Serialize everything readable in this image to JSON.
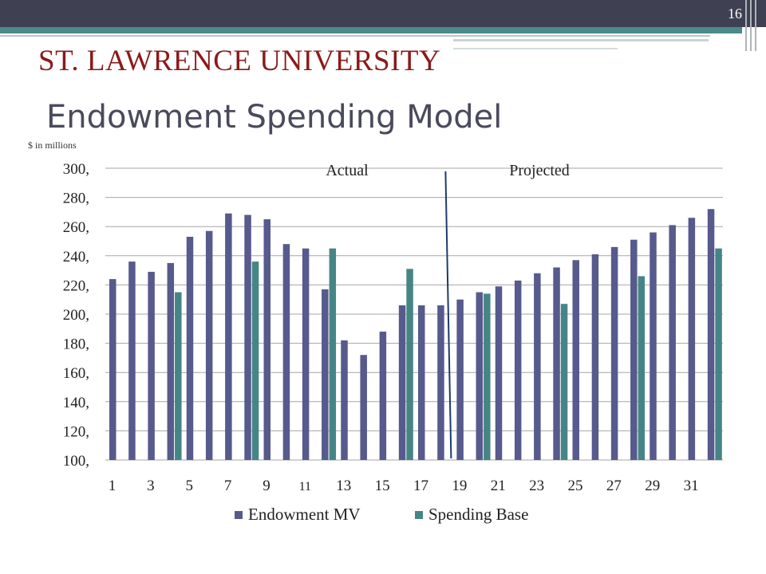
{
  "header": {
    "page_number": "16",
    "logo_text": "ST. LAWRENCE UNIVERSITY",
    "title": "Endowment Spending Model"
  },
  "colors": {
    "endowment": "#575a8c",
    "spending": "#468585",
    "divider": "#1f3a6e",
    "topbar": "#3f4152",
    "teal_bar": "#4a8a8a",
    "logo": "#8b1a1a",
    "title": "#4a4a5c"
  },
  "chart_data": {
    "type": "bar",
    "units_label": "$ in millions",
    "ylim": [
      100,
      300
    ],
    "y_ticks": [
      "100,",
      "120,",
      "140,",
      "160,",
      "180,",
      "200,",
      "220,",
      "240,",
      "260,",
      "280,",
      "300,"
    ],
    "y_tick_values": [
      100,
      120,
      140,
      160,
      180,
      200,
      220,
      240,
      260,
      280,
      300
    ],
    "x_tick_labels": [
      "1",
      "3",
      "5",
      "7",
      "9",
      "11",
      "13",
      "15",
      "17",
      "19",
      "21",
      "23",
      "25",
      "27",
      "29",
      "31"
    ],
    "categories": [
      1,
      2,
      3,
      4,
      5,
      6,
      7,
      8,
      9,
      10,
      11,
      12,
      13,
      14,
      15,
      16,
      17,
      18,
      19,
      20,
      21,
      22,
      23,
      24,
      25,
      26,
      27,
      28,
      29,
      30,
      31,
      32
    ],
    "grid": true,
    "legend_position": "bottom",
    "divider_after_category": 18,
    "annotations": [
      "Actual",
      "Projected"
    ],
    "series": [
      {
        "name": "Endowment MV",
        "values": [
          224,
          236,
          229,
          235,
          253,
          257,
          269,
          268,
          265,
          248,
          245,
          217,
          182,
          172,
          188,
          206,
          206,
          206,
          210,
          215,
          219,
          223,
          228,
          232,
          237,
          241,
          246,
          251,
          256,
          261,
          266,
          272
        ]
      },
      {
        "name": "Spending Base",
        "values": [
          null,
          null,
          null,
          215,
          null,
          null,
          null,
          236,
          null,
          null,
          null,
          245,
          null,
          null,
          null,
          231,
          null,
          null,
          null,
          214,
          null,
          null,
          null,
          207,
          null,
          null,
          null,
          226,
          null,
          null,
          null,
          245
        ]
      }
    ]
  }
}
